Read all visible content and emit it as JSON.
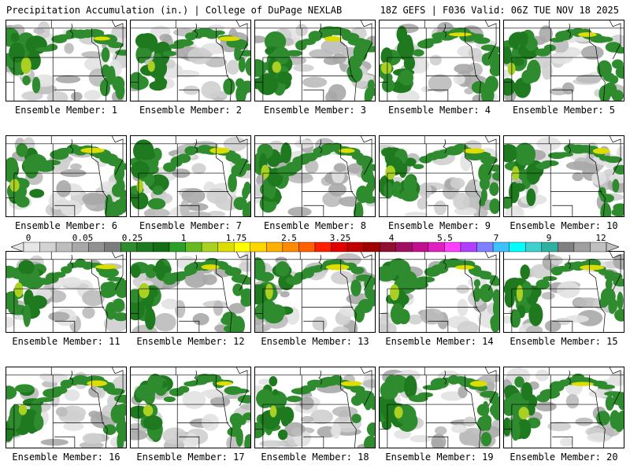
{
  "header": {
    "left": "Precipitation Accumulation (in.) | College of DuPage NEXLAB",
    "right": "18Z GEFS | F036 Valid: 06Z TUE NOV 18 2025"
  },
  "panels": [
    {
      "label": "Ensemble Member: 1"
    },
    {
      "label": "Ensemble Member: 2"
    },
    {
      "label": "Ensemble Member: 3"
    },
    {
      "label": "Ensemble Member: 4"
    },
    {
      "label": "Ensemble Member: 5"
    },
    {
      "label": "Ensemble Member: 6"
    },
    {
      "label": "Ensemble Member: 7"
    },
    {
      "label": "Ensemble Member: 8"
    },
    {
      "label": "Ensemble Member: 9"
    },
    {
      "label": "Ensemble Member: 10"
    },
    {
      "label": "Ensemble Member: 11"
    },
    {
      "label": "Ensemble Member: 12"
    },
    {
      "label": "Ensemble Member: 13"
    },
    {
      "label": "Ensemble Member: 14"
    },
    {
      "label": "Ensemble Member: 15"
    },
    {
      "label": "Ensemble Member: 16"
    },
    {
      "label": "Ensemble Member: 17"
    },
    {
      "label": "Ensemble Member: 18"
    },
    {
      "label": "Ensemble Member: 19"
    },
    {
      "label": "Ensemble Member: 20"
    }
  ],
  "colorbar": {
    "tick_labels": [
      "0",
      "0.05",
      "0.25",
      "1",
      "1.75",
      "2.5",
      "3.25",
      "4",
      "5.5",
      "7",
      "9",
      "12"
    ],
    "colors": [
      "#e6e6e6",
      "#d2d2d2",
      "#bebebe",
      "#a8a8a8",
      "#929292",
      "#7c7c7c",
      "#2e8b2e",
      "#1f7a1f",
      "#146e14",
      "#2aa02a",
      "#66bb22",
      "#aad022",
      "#dddd00",
      "#ffff00",
      "#ffd700",
      "#ffb000",
      "#ff8c00",
      "#ff6000",
      "#ff2000",
      "#e00000",
      "#c00000",
      "#a00000",
      "#901030",
      "#a01060",
      "#c01090",
      "#e020c0",
      "#ff40ff",
      "#b040ff",
      "#8080ff",
      "#40c0ff",
      "#00ffff",
      "#40d0d0",
      "#30b0a0",
      "#808080",
      "#a0a0a0",
      "#c0c0c0"
    ]
  }
}
